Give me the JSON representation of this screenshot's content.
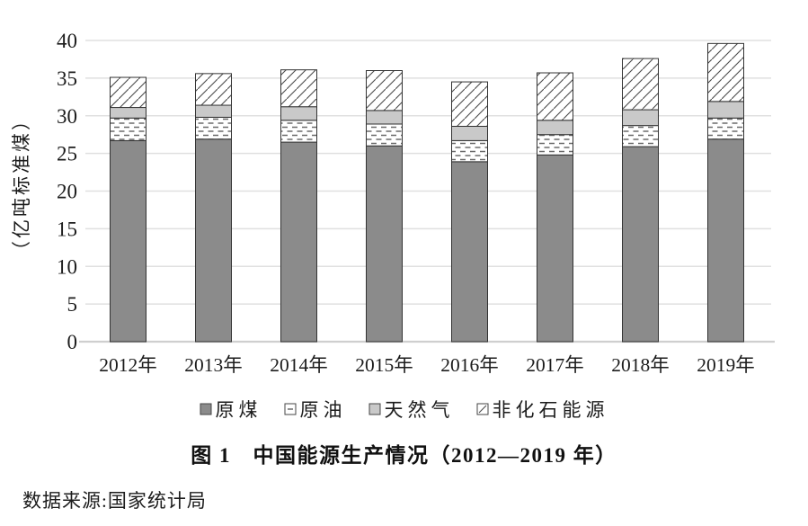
{
  "figure": {
    "title": "图 1　中国能源生产情况（2012—2019 年）",
    "source": "数据来源:国家统计局"
  },
  "chart_data": {
    "type": "bar",
    "stacked": true,
    "title": "图 1　中国能源生产情况（2012—2019 年）",
    "ylabel": "（亿吨标准煤）",
    "xlabel": "",
    "categories": [
      "2012年",
      "2013年",
      "2014年",
      "2015年",
      "2016年",
      "2017年",
      "2018年",
      "2019年"
    ],
    "series": [
      {
        "name": "原煤",
        "pattern": "solid",
        "color": "#8b8b8b",
        "values": [
          26.7,
          26.9,
          26.5,
          26.0,
          23.9,
          24.8,
          25.9,
          26.9
        ]
      },
      {
        "name": "原油",
        "pattern": "dashes",
        "color": "#ffffff",
        "values": [
          3.0,
          2.9,
          2.9,
          2.9,
          2.8,
          2.7,
          2.8,
          2.8
        ]
      },
      {
        "name": "天然气",
        "pattern": "solid",
        "color": "#c9c9c9",
        "values": [
          1.4,
          1.6,
          1.8,
          1.8,
          1.9,
          1.9,
          2.1,
          2.2
        ]
      },
      {
        "name": "非化石能源",
        "pattern": "diagonal",
        "color": "#ffffff",
        "values": [
          4.0,
          4.2,
          4.9,
          5.3,
          5.9,
          6.3,
          6.8,
          7.7
        ]
      }
    ],
    "totals": [
      35.1,
      35.6,
      36.1,
      36.0,
      34.5,
      35.7,
      37.6,
      39.6
    ],
    "ylim": [
      0,
      40
    ],
    "ytick_step": 5,
    "yticks": [
      0,
      5,
      10,
      15,
      20,
      25,
      30,
      35,
      40
    ],
    "grid": "horizontal",
    "legend_position": "bottom",
    "colors": {
      "coal_fill": "#8b8b8b",
      "gas_fill": "#c9c9c9",
      "oil_dash_stroke": "#6a6a6a",
      "hatch_stroke": "#4a4a4a",
      "segment_border": "#333333",
      "gridline": "#e0e0e0",
      "baseline": "#cfcfcf",
      "text": "#1c1c1c"
    }
  }
}
